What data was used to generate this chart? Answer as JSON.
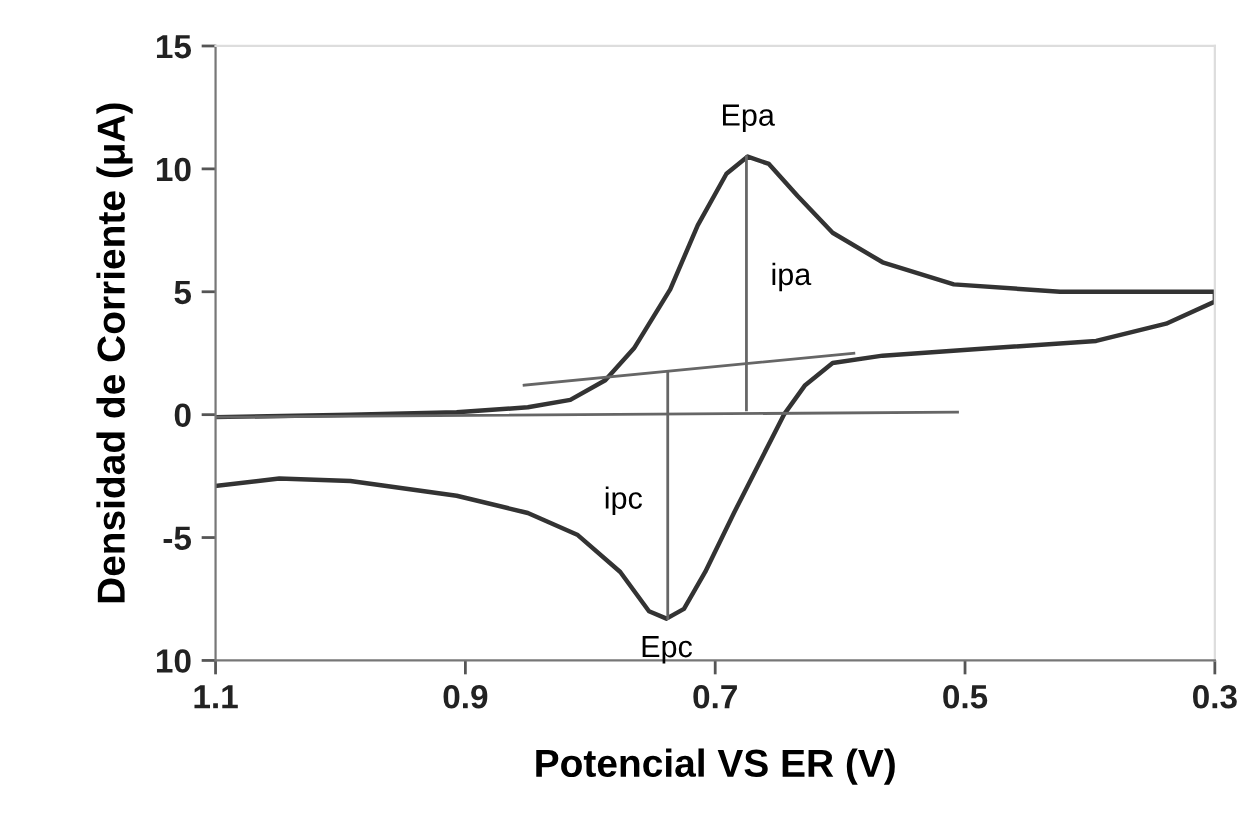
{
  "chart_data": {
    "type": "line",
    "xlabel": "Potencial VS ER (V)",
    "ylabel": "Densidad de Corriente (μA)",
    "xlim": [
      1.1,
      0.3
    ],
    "xticks": [
      1.1,
      0.9,
      0.7,
      0.5,
      0.3
    ],
    "ylim": [
      -10,
      15
    ],
    "yticks": [
      {
        "value": -10,
        "label": "10"
      },
      -5,
      0,
      5,
      10,
      15
    ],
    "grid": false,
    "marker": "none",
    "series": [
      {
        "color": "#333333",
        "line_style": "solid",
        "x": [
          1.1,
          0.992,
          0.907,
          0.85,
          0.816,
          0.788,
          0.765,
          0.736,
          0.714,
          0.691,
          0.674,
          0.657,
          0.634,
          0.606,
          0.566,
          0.509,
          0.424,
          0.3,
          0.3,
          0.339,
          0.395,
          0.481,
          0.566,
          0.606,
          0.628,
          0.645,
          0.662,
          0.685,
          0.708,
          0.725,
          0.739,
          0.753,
          0.776,
          0.81,
          0.85,
          0.907,
          0.992,
          1.049,
          1.1
        ],
        "values": [
          -0.1,
          0,
          0.1,
          0.3,
          0.6,
          1.4,
          2.7,
          5.1,
          7.7,
          9.8,
          10.5,
          10.2,
          8.9,
          7.4,
          6.2,
          5.3,
          5.0,
          5.0,
          4.6,
          3.7,
          3.0,
          2.7,
          2.4,
          2.1,
          1.2,
          0.0,
          -1.7,
          -4.0,
          -6.4,
          -7.9,
          -8.3,
          -8.0,
          -6.4,
          -4.9,
          -4.0,
          -3.3,
          -2.7,
          -2.6,
          -2.9
        ]
      },
      {
        "color": "#666666",
        "line_style": "solid",
        "x": [
          1.1,
          0.506
        ],
        "values": [
          -0.1,
          0.1
        ]
      },
      {
        "color": "#666666",
        "line_style": "solid",
        "x": [
          0.853,
          0.589
        ],
        "values": [
          1.2,
          2.5
        ]
      },
      {
        "color": "#666666",
        "line_style": "solid",
        "x": [
          0.675,
          0.675
        ],
        "values": [
          10.5,
          0.2
        ]
      },
      {
        "color": "#666666",
        "line_style": "solid",
        "x": [
          0.738,
          0.738
        ],
        "values": [
          1.7,
          -8.3
        ]
      }
    ],
    "annotations": [
      {
        "text": "Epa",
        "x": 0.674,
        "y": 10.5
      },
      {
        "text": "ipa",
        "x": 0.675,
        "y": 5.6
      },
      {
        "text": "ipc",
        "x": 0.738,
        "y": -3.5
      },
      {
        "text": "Epc",
        "x": 0.739,
        "y": -8.3
      }
    ]
  }
}
